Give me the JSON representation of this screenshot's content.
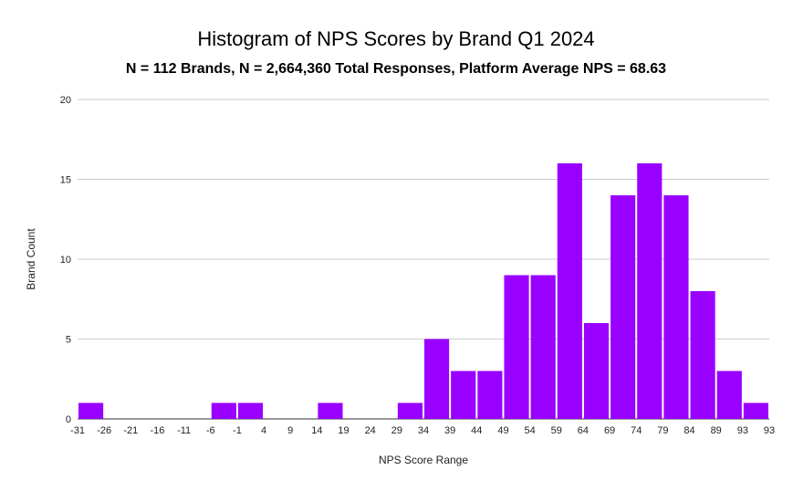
{
  "chart_data": {
    "type": "bar",
    "title": "Histogram of NPS Scores by Brand Q1 2024",
    "subtitle": "N = 112 Brands, N = 2,664,360 Total Responses, Platform Average NPS = 68.63",
    "xlabel": "NPS Score Range",
    "ylabel": "Brand Count",
    "ylim": [
      0,
      20
    ],
    "yticks": [
      0,
      5,
      10,
      15,
      20
    ],
    "x_tick_labels": [
      "-31",
      "-26",
      "-21",
      "-16",
      "-11",
      "-6",
      "-1",
      "4",
      "9",
      "14",
      "19",
      "24",
      "29",
      "34",
      "39",
      "44",
      "49",
      "54",
      "59",
      "64",
      "69",
      "74",
      "79",
      "84",
      "89",
      "93",
      "93"
    ],
    "values": [
      1,
      0,
      0,
      0,
      0,
      1,
      1,
      0,
      0,
      1,
      0,
      0,
      1,
      5,
      3,
      3,
      9,
      9,
      16,
      6,
      14,
      16,
      14,
      8,
      3,
      1
    ],
    "grid": true,
    "legend": "none",
    "bar_color": "#9900ff"
  }
}
